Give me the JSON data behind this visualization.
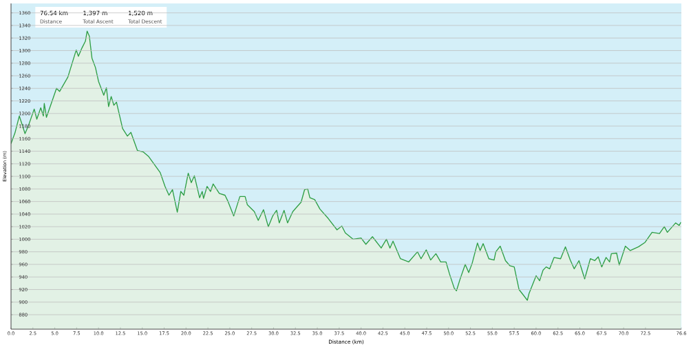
{
  "chart_data": {
    "type": "area",
    "xlabel": "Distance  (km)",
    "ylabel": "Elevation (m)",
    "annotations": [
      "76.54 km",
      "Distance",
      "1,397 m",
      "Total Ascent",
      "1,520 m",
      "Total Descent"
    ],
    "x": [
      0,
      0.45,
      0.95,
      1.6,
      2.0,
      2.65,
      2.95,
      3.4,
      3.7,
      3.8,
      4.05,
      4.6,
      5.2,
      5.55,
      6.5,
      7.45,
      7.7,
      8.1,
      8.5,
      8.7,
      8.95,
      9.25,
      9.65,
      10.0,
      10.6,
      10.9,
      11.15,
      11.45,
      11.75,
      12.05,
      12.75,
      13.3,
      13.7,
      14.45,
      15.1,
      15.7,
      17.05,
      17.6,
      18.05,
      18.45,
      19.0,
      19.4,
      19.75,
      20.25,
      20.6,
      20.95,
      21.55,
      21.85,
      22.0,
      22.4,
      22.8,
      23.1,
      23.8,
      24.45,
      24.8,
      25.45,
      26.15,
      26.75,
      27.0,
      27.8,
      28.25,
      28.85,
      29.4,
      29.9,
      30.35,
      30.65,
      31.2,
      31.6,
      32.2,
      33.15,
      33.55,
      33.9,
      34.15,
      34.7,
      35.3,
      36.25,
      37.25,
      37.8,
      38.2,
      39.1,
      40.0,
      40.55,
      41.3,
      42.3,
      42.9,
      43.3,
      43.65,
      44.5,
      45.45,
      46.45,
      46.85,
      47.45,
      47.95,
      48.55,
      49.1,
      49.7,
      50.1,
      50.65,
      50.9,
      51.3,
      51.9,
      52.3,
      52.7,
      53.3,
      53.6,
      53.95,
      54.6,
      55.2,
      55.4,
      55.9,
      56.5,
      57.0,
      57.5,
      58.05,
      58.5,
      59.0,
      59.2,
      60.0,
      60.4,
      60.8,
      61.15,
      61.55,
      62.05,
      62.8,
      63.35,
      63.9,
      64.35,
      64.9,
      65.55,
      66.2,
      66.7,
      67.1,
      67.5,
      68.0,
      68.4,
      68.6,
      69.2,
      69.5,
      70.2,
      70.75,
      71.7,
      72.45,
      73.25,
      74.1,
      74.65,
      75.0,
      75.95,
      76.35,
      76.54
    ],
    "values": [
      1152,
      1169,
      1196,
      1168,
      1181,
      1207,
      1191,
      1209,
      1196,
      1216,
      1194,
      1216,
      1240,
      1235,
      1258,
      1301,
      1291,
      1304,
      1315,
      1331,
      1323,
      1288,
      1273,
      1251,
      1229,
      1241,
      1211,
      1227,
      1213,
      1218,
      1176,
      1164,
      1170,
      1141,
      1139,
      1132,
      1106,
      1084,
      1070,
      1079,
      1043,
      1076,
      1070,
      1105,
      1090,
      1101,
      1066,
      1076,
      1065,
      1084,
      1076,
      1088,
      1073,
      1070,
      1060,
      1037,
      1068,
      1068,
      1055,
      1044,
      1030,
      1047,
      1020,
      1037,
      1046,
      1026,
      1046,
      1026,
      1044,
      1059,
      1079,
      1080,
      1066,
      1063,
      1048,
      1033,
      1015,
      1021,
      1010,
      1000,
      1002,
      992,
      1004,
      986,
      1000,
      986,
      997,
      969,
      964,
      980,
      969,
      983,
      967,
      977,
      964,
      964,
      945,
      922,
      918,
      936,
      960,
      947,
      962,
      994,
      982,
      993,
      969,
      967,
      980,
      989,
      966,
      958,
      956,
      920,
      912,
      903,
      914,
      942,
      934,
      951,
      956,
      953,
      971,
      969,
      988,
      967,
      953,
      966,
      937,
      969,
      966,
      972,
      956,
      971,
      964,
      977,
      978,
      959,
      989,
      982,
      988,
      995,
      1011,
      1009,
      1020,
      1011,
      1026,
      1022,
      1027
    ],
    "color": "#2e9e45",
    "xlim": [
      0,
      76.6
    ],
    "ylim": [
      857,
      1375
    ],
    "xticks": [
      {
        "value": 0,
        "label": "0.0"
      },
      2.5,
      {
        "value": 5,
        "label": "5.0"
      },
      7.5,
      {
        "value": 10,
        "label": "10.0"
      },
      12.5,
      {
        "value": 15,
        "label": "15.0"
      },
      17.5,
      {
        "value": 20,
        "label": "20.0"
      },
      22.5,
      {
        "value": 25,
        "label": "25.0"
      },
      27.5,
      {
        "value": 30,
        "label": "30.0"
      },
      32.5,
      {
        "value": 35,
        "label": "35.0"
      },
      37.5,
      {
        "value": 40,
        "label": "40.0"
      },
      42.5,
      {
        "value": 45,
        "label": "45.0"
      },
      47.5,
      {
        "value": 50,
        "label": "50.0"
      },
      52.5,
      {
        "value": 55,
        "label": "55.0"
      },
      57.5,
      {
        "value": 60,
        "label": "60.0"
      },
      62.5,
      {
        "value": 65,
        "label": "65.0"
      },
      67.5,
      {
        "value": 70,
        "label": "70.0"
      },
      72.5,
      76.6
    ],
    "yticks": [
      880,
      900,
      920,
      940,
      960,
      980,
      1000,
      1020,
      1040,
      1060,
      1080,
      1100,
      1120,
      1140,
      1160,
      1180,
      1200,
      1220,
      1240,
      1260,
      1280,
      1300,
      1320,
      1340,
      1360
    ],
    "grid": "y"
  }
}
